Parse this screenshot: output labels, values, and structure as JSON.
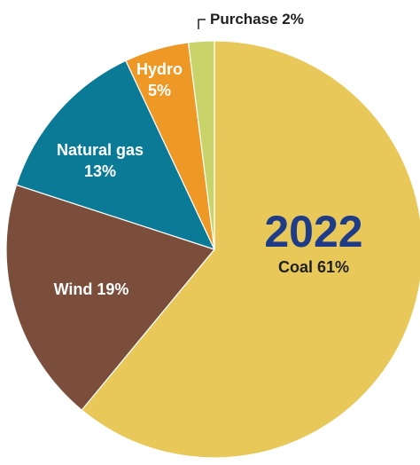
{
  "chart_data": {
    "type": "pie",
    "title": "2022",
    "slices": [
      {
        "name": "Coal",
        "value": 61,
        "text": "Coal 61%",
        "color": "#E8C858",
        "label_color": "#1f1f1f"
      },
      {
        "name": "Wind",
        "value": 19,
        "text": "Wind 19%",
        "color": "#7A4E3A",
        "label_color": "#ffffff"
      },
      {
        "name": "Natural gas",
        "value": 13,
        "text_lines": [
          "Natural gas",
          "13%"
        ],
        "color": "#0A7A96",
        "label_color": "#ffffff"
      },
      {
        "name": "Hydro",
        "value": 5,
        "text_lines": [
          "Hydro",
          "5%"
        ],
        "color": "#EE9826",
        "label_color": "#ffffff"
      },
      {
        "name": "Purchase",
        "value": 2,
        "text": "Purchase 2%",
        "color": "#C8D46A",
        "label_color": "#1f1f1f"
      }
    ],
    "title_color": "#1F3C88",
    "legend": "none"
  }
}
